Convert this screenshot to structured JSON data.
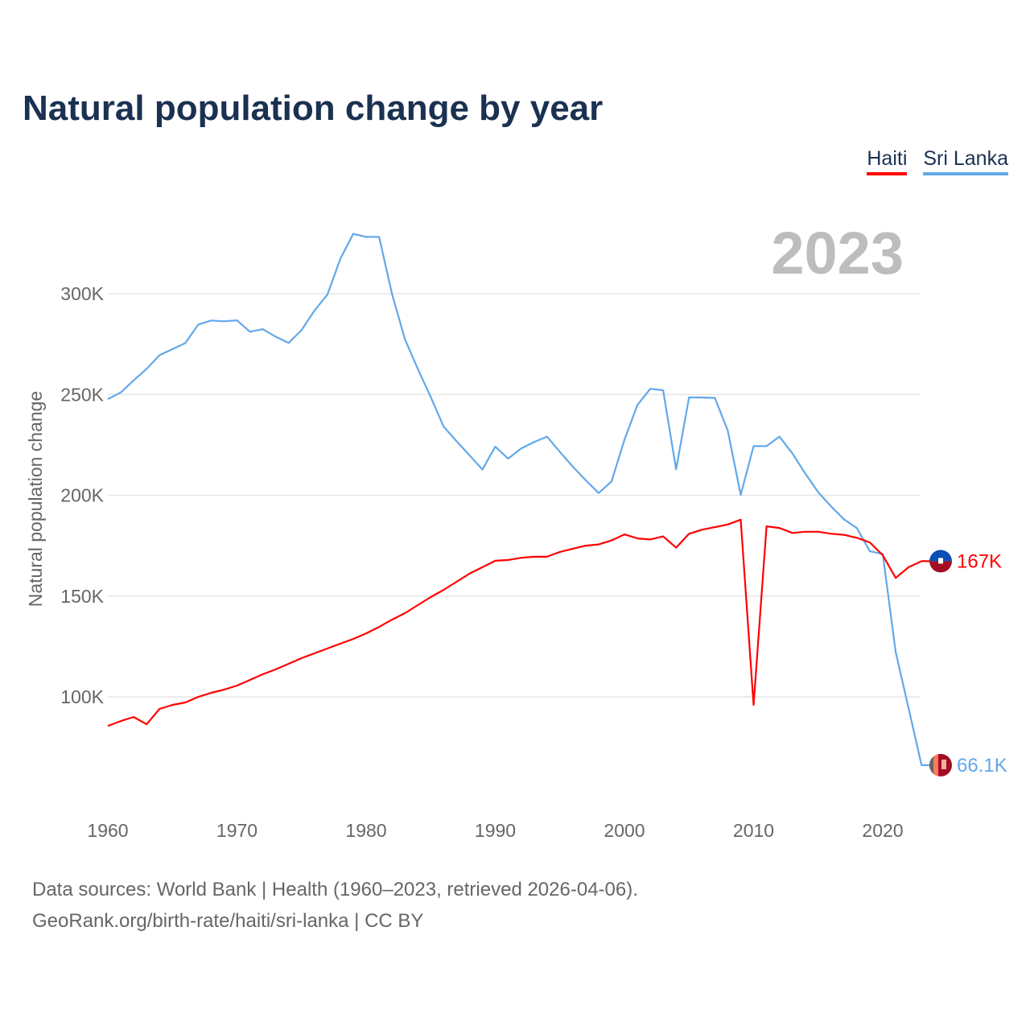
{
  "title": "Natural population change by year",
  "legend": [
    {
      "label": "Haiti",
      "color": "#ff0000"
    },
    {
      "label": "Sri Lanka",
      "color": "#62a8ea"
    }
  ],
  "year_overlay": "2023",
  "footer": {
    "line1": "Data sources: World Bank | Health (1960–2023, retrieved 2026-04-06).",
    "line2": "GeoRank.org/birth-rate/haiti/sri-lanka | CC BY"
  },
  "chart_data": {
    "type": "line",
    "title": "Natural population change by year",
    "xlabel": "",
    "ylabel": "Natural population change",
    "xlim": [
      1960,
      2023
    ],
    "ylim": [
      50000,
      342000
    ],
    "x_ticks": [
      1960,
      1970,
      1980,
      1990,
      2000,
      2010,
      2020
    ],
    "x_tick_labels": [
      "1960",
      "1970",
      "1980",
      "1990",
      "2000",
      "2010",
      "2020"
    ],
    "y_ticks": [
      100000,
      150000,
      200000,
      250000,
      300000
    ],
    "y_tick_labels": [
      "100K",
      "150K",
      "200K",
      "250K",
      "300K"
    ],
    "grid": true,
    "legend_position": "top-right",
    "x": [
      1960,
      1961,
      1962,
      1963,
      1964,
      1965,
      1966,
      1967,
      1968,
      1969,
      1970,
      1971,
      1972,
      1973,
      1974,
      1975,
      1976,
      1977,
      1978,
      1979,
      1980,
      1981,
      1982,
      1983,
      1984,
      1985,
      1986,
      1987,
      1988,
      1989,
      1990,
      1991,
      1992,
      1993,
      1994,
      1995,
      1996,
      1997,
      1998,
      1999,
      2000,
      2001,
      2002,
      2003,
      2004,
      2005,
      2006,
      2007,
      2008,
      2009,
      2010,
      2011,
      2012,
      2013,
      2014,
      2015,
      2016,
      2017,
      2018,
      2019,
      2020,
      2021,
      2022,
      2023
    ],
    "series": [
      {
        "name": "Haiti",
        "color": "#ff0000",
        "end_label": "167K",
        "values": [
          85600,
          88000,
          90000,
          86400,
          94000,
          96000,
          97200,
          100000,
          102000,
          103600,
          105600,
          108400,
          111200,
          113600,
          116400,
          119200,
          121600,
          124000,
          126400,
          128700,
          131500,
          134700,
          138300,
          141500,
          145500,
          149500,
          153100,
          157100,
          161100,
          164300,
          167500,
          167900,
          169000,
          169500,
          169500,
          171900,
          173500,
          175000,
          175600,
          177600,
          180600,
          178600,
          178100,
          179600,
          174000,
          180900,
          182900,
          184200,
          185500,
          187900,
          96000,
          184600,
          183800,
          181300,
          181900,
          181900,
          180900,
          180400,
          178900,
          176600,
          170300,
          159000,
          164300,
          167300
        ]
      },
      {
        "name": "Sri Lanka",
        "color": "#62a8ea",
        "end_label": "66.1K",
        "values": [
          247700,
          251000,
          257000,
          262700,
          269500,
          272500,
          275500,
          284700,
          286700,
          286300,
          286800,
          281100,
          282400,
          278700,
          275600,
          282000,
          291600,
          299600,
          317300,
          329700,
          328200,
          328200,
          300000,
          277400,
          262700,
          248800,
          234100,
          226800,
          219900,
          212800,
          224100,
          218200,
          223200,
          226400,
          229100,
          221500,
          214200,
          207500,
          201100,
          206900,
          227500,
          244800,
          252800,
          252100,
          212900,
          248600,
          248500,
          248300,
          232100,
          200200,
          224400,
          224400,
          229100,
          220800,
          210800,
          201500,
          194500,
          188100,
          183700,
          172200,
          170900,
          122200,
          94400,
          66100
        ]
      }
    ]
  }
}
